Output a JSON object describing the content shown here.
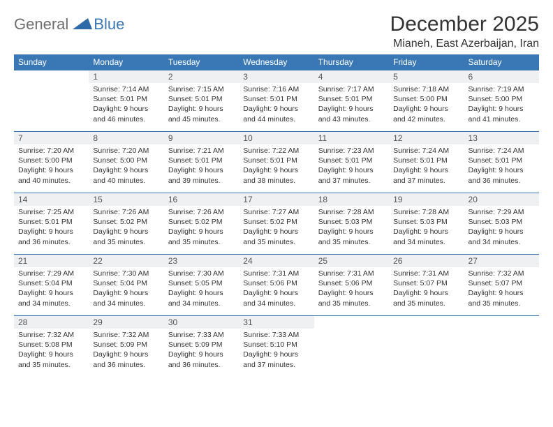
{
  "logo": {
    "text1": "General",
    "text2": "Blue"
  },
  "title": "December 2025",
  "location": "Mianeh, East Azerbaijan, Iran",
  "styling": {
    "header_bg": "#3a78b5",
    "header_fg": "#ffffff",
    "daynum_bg": "#eef0f2",
    "border_color": "#3a78b5",
    "body_font_size": 10.5,
    "title_font_size": 30
  },
  "weekdays": [
    "Sunday",
    "Monday",
    "Tuesday",
    "Wednesday",
    "Thursday",
    "Friday",
    "Saturday"
  ],
  "weeks": [
    [
      {
        "n": "",
        "sr": "",
        "ss": "",
        "dl": ""
      },
      {
        "n": "1",
        "sr": "Sunrise: 7:14 AM",
        "ss": "Sunset: 5:01 PM",
        "dl": "Daylight: 9 hours and 46 minutes."
      },
      {
        "n": "2",
        "sr": "Sunrise: 7:15 AM",
        "ss": "Sunset: 5:01 PM",
        "dl": "Daylight: 9 hours and 45 minutes."
      },
      {
        "n": "3",
        "sr": "Sunrise: 7:16 AM",
        "ss": "Sunset: 5:01 PM",
        "dl": "Daylight: 9 hours and 44 minutes."
      },
      {
        "n": "4",
        "sr": "Sunrise: 7:17 AM",
        "ss": "Sunset: 5:01 PM",
        "dl": "Daylight: 9 hours and 43 minutes."
      },
      {
        "n": "5",
        "sr": "Sunrise: 7:18 AM",
        "ss": "Sunset: 5:00 PM",
        "dl": "Daylight: 9 hours and 42 minutes."
      },
      {
        "n": "6",
        "sr": "Sunrise: 7:19 AM",
        "ss": "Sunset: 5:00 PM",
        "dl": "Daylight: 9 hours and 41 minutes."
      }
    ],
    [
      {
        "n": "7",
        "sr": "Sunrise: 7:20 AM",
        "ss": "Sunset: 5:00 PM",
        "dl": "Daylight: 9 hours and 40 minutes."
      },
      {
        "n": "8",
        "sr": "Sunrise: 7:20 AM",
        "ss": "Sunset: 5:00 PM",
        "dl": "Daylight: 9 hours and 40 minutes."
      },
      {
        "n": "9",
        "sr": "Sunrise: 7:21 AM",
        "ss": "Sunset: 5:01 PM",
        "dl": "Daylight: 9 hours and 39 minutes."
      },
      {
        "n": "10",
        "sr": "Sunrise: 7:22 AM",
        "ss": "Sunset: 5:01 PM",
        "dl": "Daylight: 9 hours and 38 minutes."
      },
      {
        "n": "11",
        "sr": "Sunrise: 7:23 AM",
        "ss": "Sunset: 5:01 PM",
        "dl": "Daylight: 9 hours and 37 minutes."
      },
      {
        "n": "12",
        "sr": "Sunrise: 7:24 AM",
        "ss": "Sunset: 5:01 PM",
        "dl": "Daylight: 9 hours and 37 minutes."
      },
      {
        "n": "13",
        "sr": "Sunrise: 7:24 AM",
        "ss": "Sunset: 5:01 PM",
        "dl": "Daylight: 9 hours and 36 minutes."
      }
    ],
    [
      {
        "n": "14",
        "sr": "Sunrise: 7:25 AM",
        "ss": "Sunset: 5:01 PM",
        "dl": "Daylight: 9 hours and 36 minutes."
      },
      {
        "n": "15",
        "sr": "Sunrise: 7:26 AM",
        "ss": "Sunset: 5:02 PM",
        "dl": "Daylight: 9 hours and 35 minutes."
      },
      {
        "n": "16",
        "sr": "Sunrise: 7:26 AM",
        "ss": "Sunset: 5:02 PM",
        "dl": "Daylight: 9 hours and 35 minutes."
      },
      {
        "n": "17",
        "sr": "Sunrise: 7:27 AM",
        "ss": "Sunset: 5:02 PM",
        "dl": "Daylight: 9 hours and 35 minutes."
      },
      {
        "n": "18",
        "sr": "Sunrise: 7:28 AM",
        "ss": "Sunset: 5:03 PM",
        "dl": "Daylight: 9 hours and 35 minutes."
      },
      {
        "n": "19",
        "sr": "Sunrise: 7:28 AM",
        "ss": "Sunset: 5:03 PM",
        "dl": "Daylight: 9 hours and 34 minutes."
      },
      {
        "n": "20",
        "sr": "Sunrise: 7:29 AM",
        "ss": "Sunset: 5:03 PM",
        "dl": "Daylight: 9 hours and 34 minutes."
      }
    ],
    [
      {
        "n": "21",
        "sr": "Sunrise: 7:29 AM",
        "ss": "Sunset: 5:04 PM",
        "dl": "Daylight: 9 hours and 34 minutes."
      },
      {
        "n": "22",
        "sr": "Sunrise: 7:30 AM",
        "ss": "Sunset: 5:04 PM",
        "dl": "Daylight: 9 hours and 34 minutes."
      },
      {
        "n": "23",
        "sr": "Sunrise: 7:30 AM",
        "ss": "Sunset: 5:05 PM",
        "dl": "Daylight: 9 hours and 34 minutes."
      },
      {
        "n": "24",
        "sr": "Sunrise: 7:31 AM",
        "ss": "Sunset: 5:06 PM",
        "dl": "Daylight: 9 hours and 34 minutes."
      },
      {
        "n": "25",
        "sr": "Sunrise: 7:31 AM",
        "ss": "Sunset: 5:06 PM",
        "dl": "Daylight: 9 hours and 35 minutes."
      },
      {
        "n": "26",
        "sr": "Sunrise: 7:31 AM",
        "ss": "Sunset: 5:07 PM",
        "dl": "Daylight: 9 hours and 35 minutes."
      },
      {
        "n": "27",
        "sr": "Sunrise: 7:32 AM",
        "ss": "Sunset: 5:07 PM",
        "dl": "Daylight: 9 hours and 35 minutes."
      }
    ],
    [
      {
        "n": "28",
        "sr": "Sunrise: 7:32 AM",
        "ss": "Sunset: 5:08 PM",
        "dl": "Daylight: 9 hours and 35 minutes."
      },
      {
        "n": "29",
        "sr": "Sunrise: 7:32 AM",
        "ss": "Sunset: 5:09 PM",
        "dl": "Daylight: 9 hours and 36 minutes."
      },
      {
        "n": "30",
        "sr": "Sunrise: 7:33 AM",
        "ss": "Sunset: 5:09 PM",
        "dl": "Daylight: 9 hours and 36 minutes."
      },
      {
        "n": "31",
        "sr": "Sunrise: 7:33 AM",
        "ss": "Sunset: 5:10 PM",
        "dl": "Daylight: 9 hours and 37 minutes."
      },
      {
        "n": "",
        "sr": "",
        "ss": "",
        "dl": ""
      },
      {
        "n": "",
        "sr": "",
        "ss": "",
        "dl": ""
      },
      {
        "n": "",
        "sr": "",
        "ss": "",
        "dl": ""
      }
    ]
  ]
}
